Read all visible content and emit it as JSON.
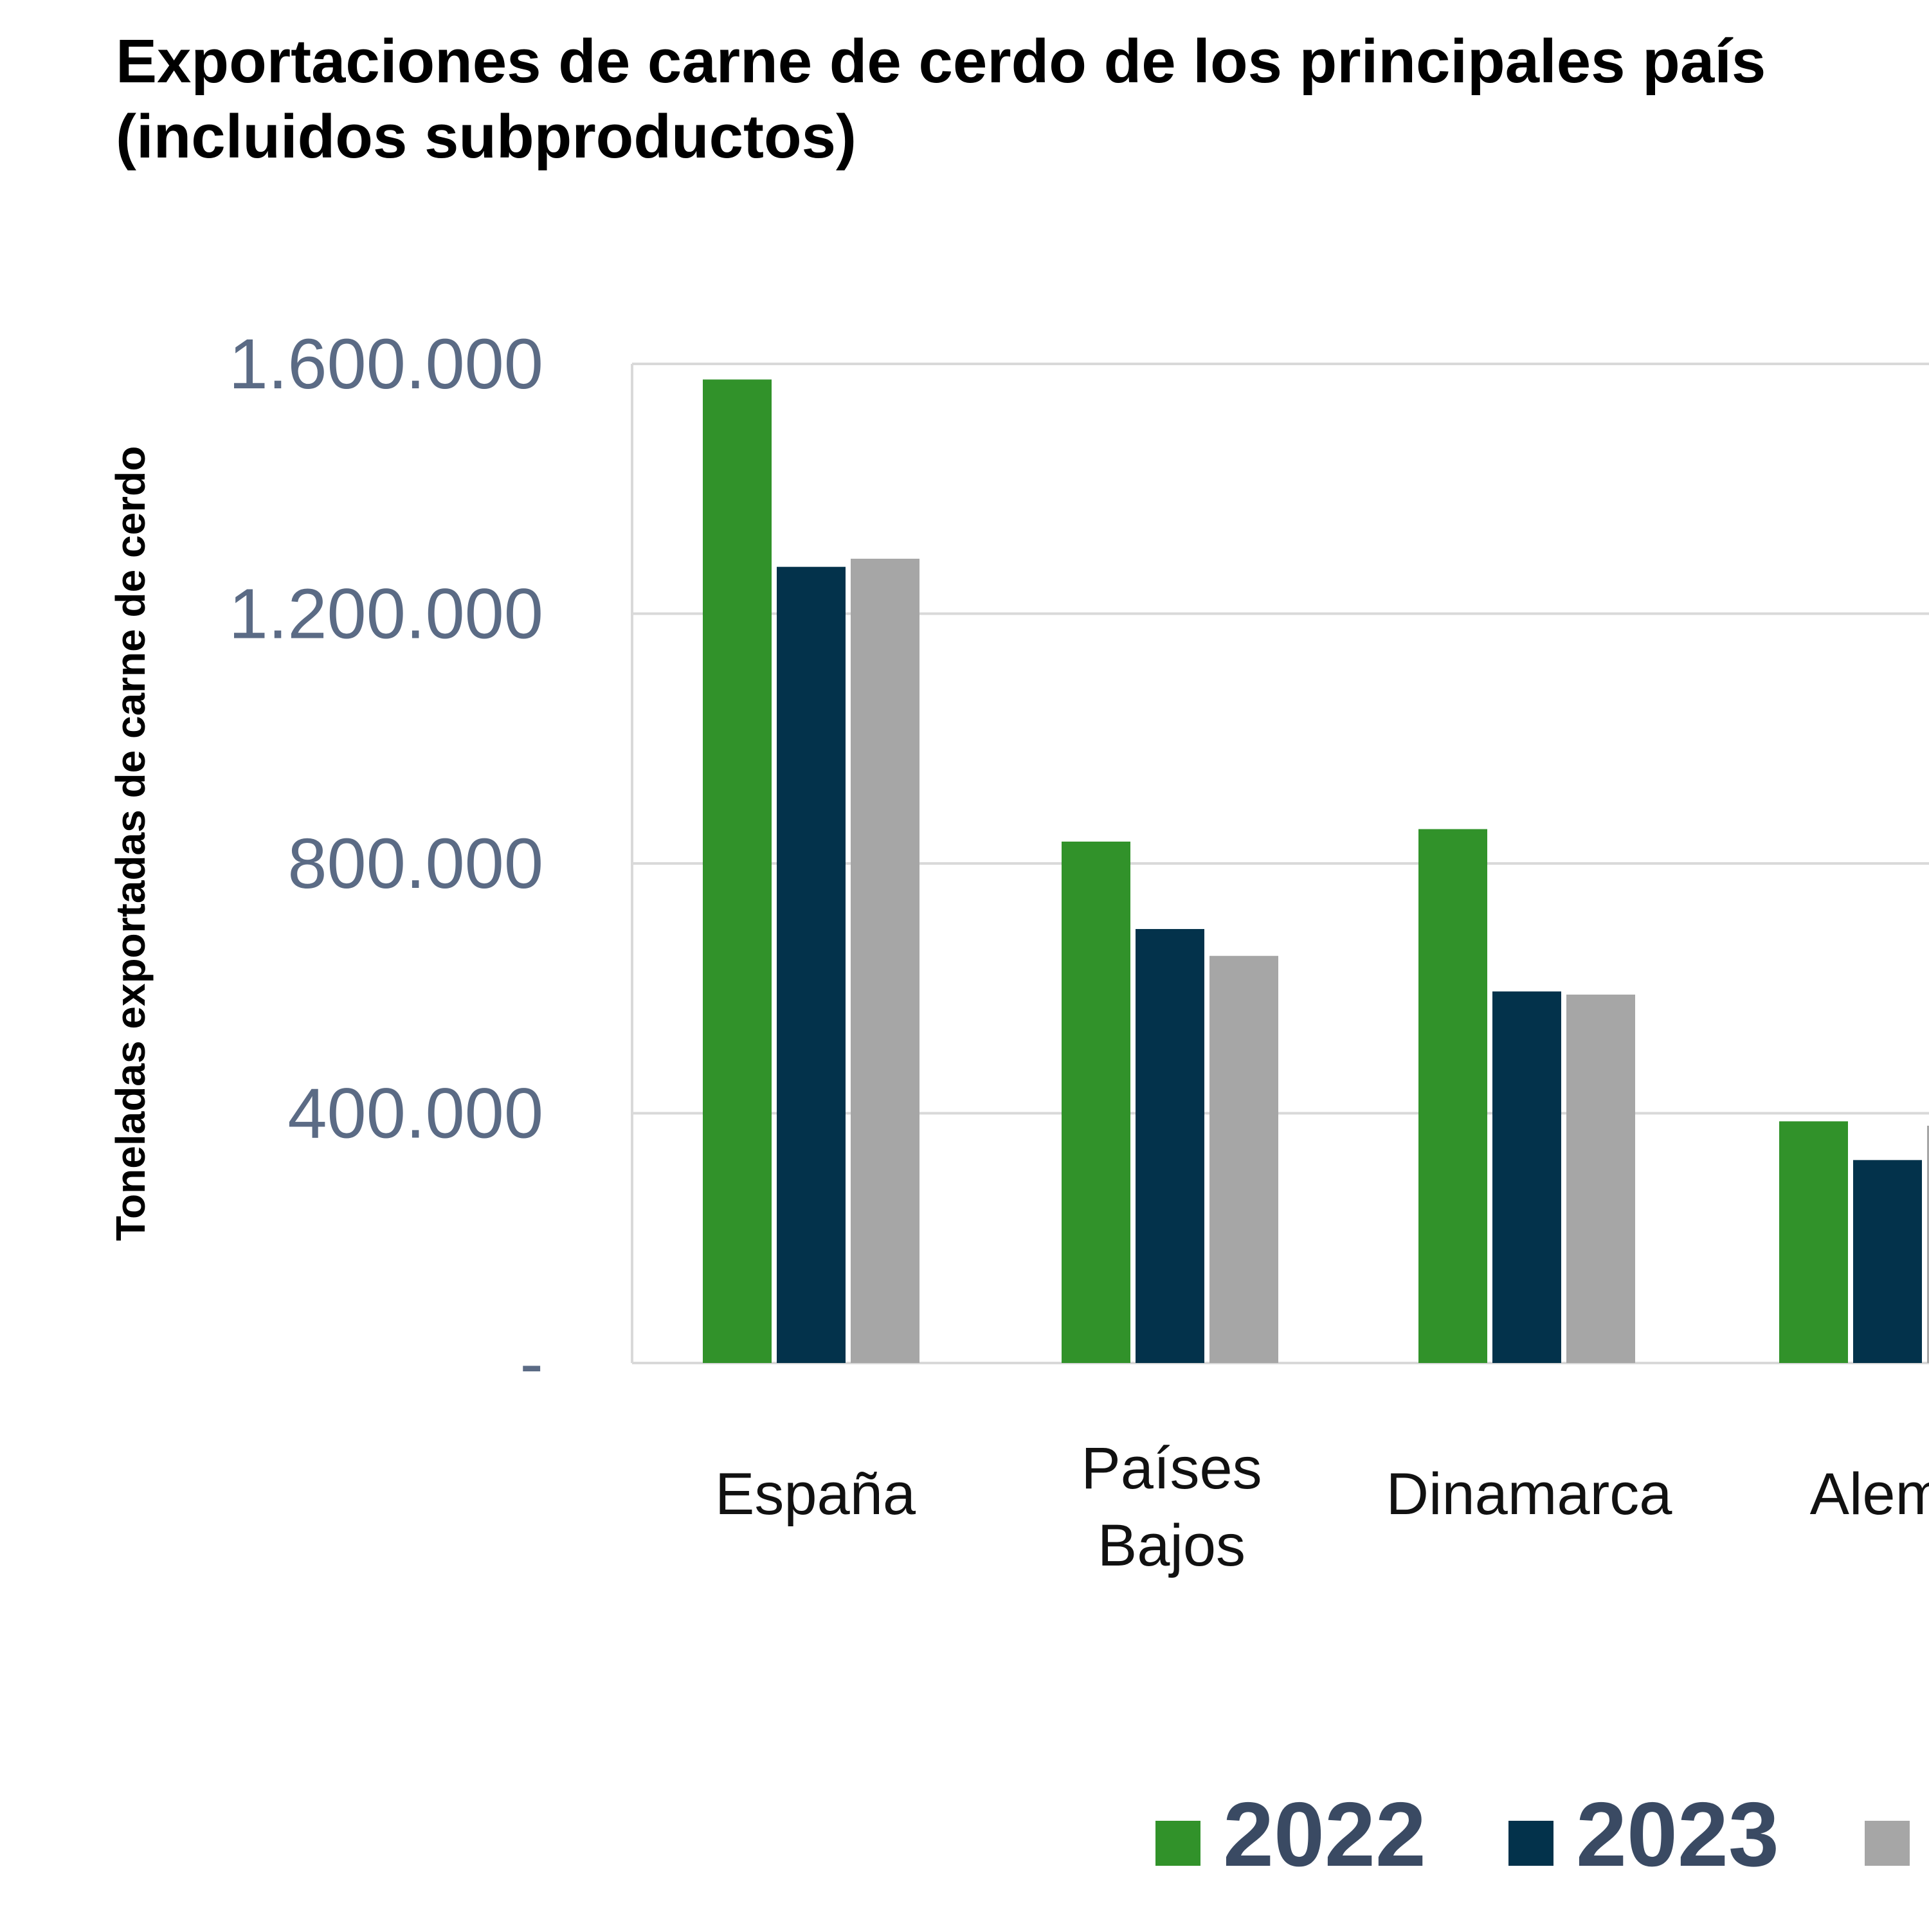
{
  "chart_data": {
    "type": "bar",
    "title": "Exportaciones de carne de cerdo de los principales país",
    "subtitle": "(incluidos subproductos)",
    "ylabel": "Toneladas exportadas de carne de cerdo",
    "xlabel": "",
    "categories": [
      "España",
      "Países Bajos",
      "Dinamarca",
      "Alema"
    ],
    "series": [
      {
        "name": "2022",
        "color": "#31922a",
        "values": [
          1575000,
          835000,
          855000,
          387000
        ]
      },
      {
        "name": "2023",
        "color": "#03324b",
        "values": [
          1275000,
          695000,
          595000,
          325000
        ]
      },
      {
        "name": "",
        "color": "#a6a6a6",
        "values": [
          1288000,
          652000,
          590000,
          380000
        ]
      }
    ],
    "yticks": [
      {
        "value": 0,
        "label": "-"
      },
      {
        "value": 400000,
        "label": "400.000"
      },
      {
        "value": 800000,
        "label": "800.000"
      },
      {
        "value": 1200000,
        "label": "1.200.000"
      },
      {
        "value": 1600000,
        "label": "1.600.000"
      }
    ],
    "ylim": [
      0,
      1600000
    ],
    "grid": true,
    "legend_position": "bottom",
    "legend_text_color": "#3a4a63"
  }
}
